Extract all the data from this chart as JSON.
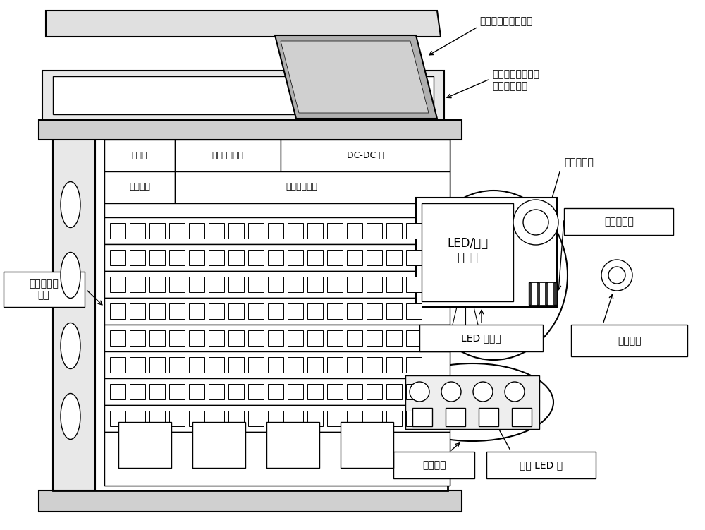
{
  "bg_color": "#ffffff",
  "labels": {
    "cabinet_body": "光缆交接箱\n箱体",
    "solar_panel": "嵌入式太阳能电池板",
    "tilted_cover_1": "具有倾斜角度的光",
    "tilted_cover_2": "缆交接箱顶盖",
    "battery": "蓄电池",
    "solar_controller": "太阳能控制器",
    "dc_dc": "DC-DC 逆",
    "comm_unit": "通信单元",
    "control_unit": "控制管理单元",
    "led_display": "LED/液晶\n显示屏",
    "led_light": "LED 照明灯",
    "fiber_port": "光纤端口",
    "port_led": "端口 LED 灯",
    "camera": "监控摄像头",
    "alarm": "音频报警器",
    "door_lock": "电子门锁"
  },
  "figsize": [
    10.0,
    7.51
  ],
  "dpi": 100
}
